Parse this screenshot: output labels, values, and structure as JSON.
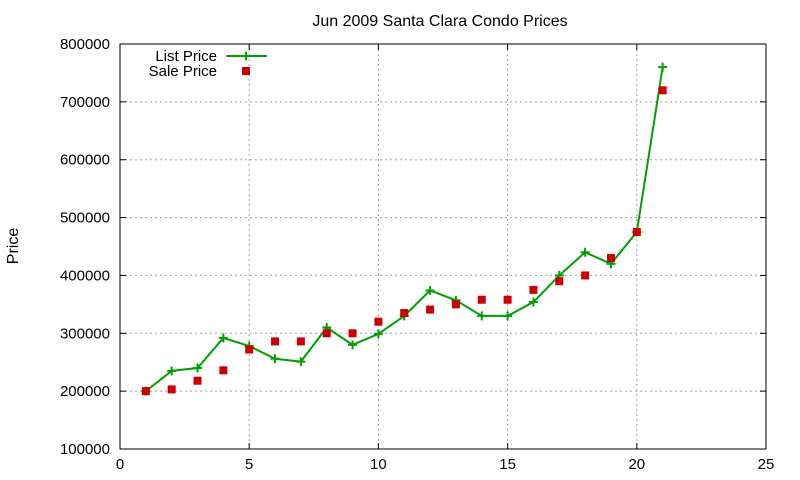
{
  "chart_data": {
    "type": "line",
    "title": "Jun 2009 Santa Clara Condo Prices",
    "xlabel": "",
    "ylabel": "Price",
    "xlim": [
      0,
      25
    ],
    "ylim": [
      100000,
      800000
    ],
    "xticks": [
      0,
      5,
      10,
      15,
      20,
      25
    ],
    "yticks": [
      100000,
      200000,
      300000,
      400000,
      500000,
      600000,
      700000,
      800000
    ],
    "grid": true,
    "legend_position": "top-left",
    "x": [
      1,
      2,
      3,
      4,
      5,
      6,
      7,
      8,
      9,
      10,
      11,
      12,
      13,
      14,
      15,
      16,
      17,
      18,
      19,
      20,
      21
    ],
    "series": [
      {
        "name": "List Price",
        "style": "line-with-plus-markers",
        "color": "#00a000",
        "values": [
          200000,
          235000,
          240000,
          292000,
          278000,
          256000,
          251000,
          310000,
          280000,
          299000,
          330000,
          374000,
          357000,
          330000,
          330000,
          354000,
          400000,
          440000,
          420000,
          475000,
          760000
        ]
      },
      {
        "name": "Sale Price",
        "style": "square-markers",
        "color": "#cc0000",
        "values": [
          200000,
          203000,
          218000,
          236000,
          272000,
          286000,
          286000,
          300000,
          300000,
          320000,
          335000,
          341000,
          350000,
          358000,
          358000,
          375000,
          390000,
          400000,
          430000,
          475000,
          720000
        ]
      }
    ]
  }
}
